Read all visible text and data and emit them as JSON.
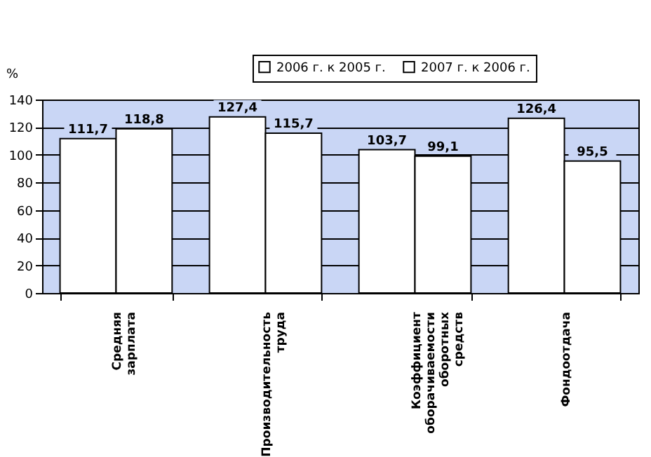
{
  "chart_data": {
    "type": "bar",
    "ylabel": "%",
    "categories": [
      "Средняя зарплата",
      "Производительность труда",
      "Коэффициент оборачиваемости оборотных средств",
      "Фондоотдача"
    ],
    "series": [
      {
        "name": "2006 г. к 2005 г.",
        "color": "#ffffff",
        "values": [
          111.7,
          127.4,
          103.7,
          126.4
        ],
        "value_labels": [
          "111,7",
          "127,4",
          "103,7",
          "126,4"
        ]
      },
      {
        "name": "2007 г. к 2006 г.",
        "color": "#ffffff",
        "values": [
          118.8,
          115.7,
          99.1,
          95.5
        ],
        "value_labels": [
          "118,8",
          "115,7",
          "99,1",
          "95,5"
        ]
      }
    ],
    "ylim": [
      0,
      140
    ],
    "yticks": [
      0,
      20,
      40,
      60,
      80,
      100,
      120,
      140
    ],
    "grid": "y",
    "legend": "top right"
  }
}
